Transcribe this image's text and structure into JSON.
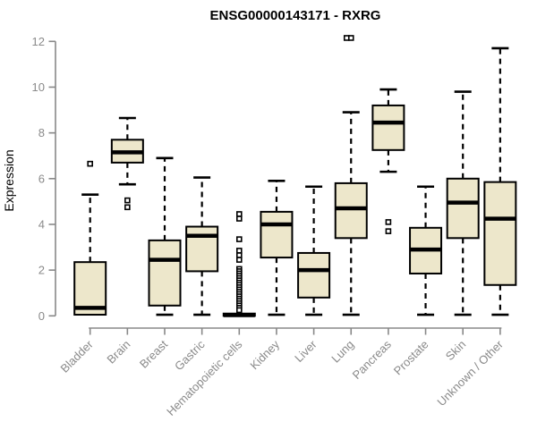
{
  "chart_data": {
    "type": "box",
    "title": "ENSG00000143171 - RXRG",
    "xlabel": "",
    "ylabel": "Expression",
    "ylim": [
      0,
      12
    ],
    "yticks": [
      0,
      2,
      4,
      6,
      8,
      10,
      12
    ],
    "grid": false,
    "legend_position": "none",
    "colors": {
      "box_fill": "#EDE7CB",
      "box_border": "#000000",
      "median": "#000000",
      "whisker": "#000000",
      "axis": "#888888",
      "tick_label": "#8A8A8A",
      "title": "#000000",
      "background": "#FFFFFF"
    },
    "categories": [
      "Bladder",
      "Brain",
      "Breast",
      "Gastric",
      "Hematopoietic cells",
      "Kidney",
      "Liver",
      "Lung",
      "Pancreas",
      "Prostate",
      "Skin",
      "Unknown / Other"
    ],
    "boxes": [
      {
        "category": "Bladder",
        "whisker_low": 0.05,
        "q1": 0.05,
        "median": 0.35,
        "q3": 2.35,
        "whisker_high": 5.3,
        "outliers": [
          6.65
        ]
      },
      {
        "category": "Brain",
        "whisker_low": 5.75,
        "q1": 6.7,
        "median": 7.15,
        "q3": 7.7,
        "whisker_high": 8.65,
        "outliers": [
          5.05,
          4.75
        ]
      },
      {
        "category": "Breast",
        "whisker_low": 0.05,
        "q1": 0.45,
        "median": 2.45,
        "q3": 3.3,
        "whisker_high": 6.9,
        "outliers": []
      },
      {
        "category": "Gastric",
        "whisker_low": 0.05,
        "q1": 1.95,
        "median": 3.5,
        "q3": 3.9,
        "whisker_high": 6.05,
        "outliers": []
      },
      {
        "category": "Hematopoietic cells",
        "whisker_low": 0,
        "q1": 0,
        "median": 0.03,
        "q3": 0.1,
        "whisker_high": 0.1,
        "outliers": [
          4.45,
          4.25,
          3.35,
          2.85,
          2.65,
          2.45,
          2.05,
          1.95,
          1.85,
          1.75,
          1.65,
          1.55,
          1.45,
          1.35,
          1.25,
          1.15,
          1.05,
          0.95,
          0.85,
          0.75,
          0.65,
          0.55,
          0.45,
          0.35,
          0.25
        ]
      },
      {
        "category": "Kidney",
        "whisker_low": 0.05,
        "q1": 2.55,
        "median": 4.0,
        "q3": 4.55,
        "whisker_high": 5.9,
        "outliers": []
      },
      {
        "category": "Liver",
        "whisker_low": 0.05,
        "q1": 0.8,
        "median": 2.0,
        "q3": 2.75,
        "whisker_high": 5.65,
        "outliers": []
      },
      {
        "category": "Lung",
        "whisker_low": 0.05,
        "q1": 3.4,
        "median": 4.7,
        "q3": 5.8,
        "whisker_high": 8.9,
        "outliers": [
          12.15,
          12.15
        ]
      },
      {
        "category": "Pancreas",
        "whisker_low": 6.3,
        "q1": 7.25,
        "median": 8.45,
        "q3": 9.2,
        "whisker_high": 9.9,
        "outliers": [
          4.1,
          3.7
        ]
      },
      {
        "category": "Prostate",
        "whisker_low": 0.05,
        "q1": 1.85,
        "median": 2.9,
        "q3": 3.85,
        "whisker_high": 5.65,
        "outliers": []
      },
      {
        "category": "Skin",
        "whisker_low": 0.05,
        "q1": 3.4,
        "median": 4.95,
        "q3": 6.0,
        "whisker_high": 9.8,
        "outliers": []
      },
      {
        "category": "Unknown / Other",
        "whisker_low": 0.05,
        "q1": 1.35,
        "median": 4.25,
        "q3": 5.85,
        "whisker_high": 11.7,
        "outliers": []
      }
    ]
  }
}
